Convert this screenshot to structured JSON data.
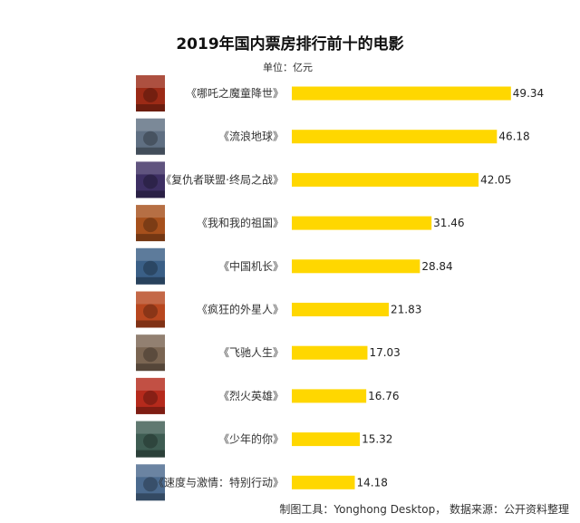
{
  "chart_data": {
    "type": "bar",
    "orientation": "horizontal",
    "title": "2019年国内票房排行前十的电影",
    "unit": "单位：亿元",
    "categories": [
      "《哪吒之魔童降世》",
      "《流浪地球》",
      "《复仇者联盟·终局之战》",
      "《我和我的祖国》",
      "《中国机长》",
      "《疯狂的外星人》",
      "《飞驰人生》",
      "《烈火英雄》",
      "《少年的你》",
      "《速度与激情：特别行动》"
    ],
    "values": [
      49.34,
      46.18,
      42.05,
      31.46,
      28.84,
      21.83,
      17.03,
      16.76,
      15.32,
      14.18
    ],
    "value_labels": [
      "49.34",
      "46.18",
      "42.05",
      "31.46",
      "28.84",
      "21.83",
      "17.03",
      "16.76",
      "15.32",
      "14.18"
    ],
    "xlim": [
      0,
      55.5
    ],
    "grid": false,
    "legend": "none"
  },
  "colors": {
    "bar": "#FFD700",
    "posters": [
      "#9b2a16",
      "#5f6f82",
      "#3d2f63",
      "#a6501c",
      "#3a5f86",
      "#b8471f",
      "#7a6552",
      "#b52a1c",
      "#3e5c52",
      "#4b6a8e"
    ]
  },
  "footer": {
    "source": "制图工具：Yonghong Desktop，  数据来源：公开资料整理"
  }
}
